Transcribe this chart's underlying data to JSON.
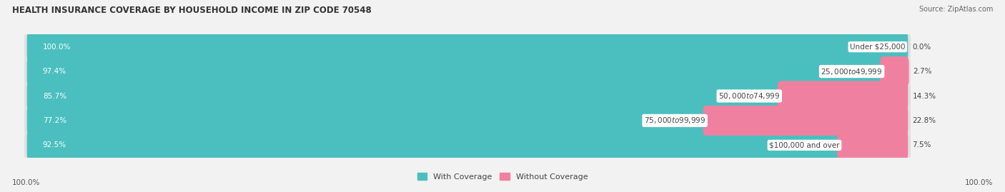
{
  "title": "HEALTH INSURANCE COVERAGE BY HOUSEHOLD INCOME IN ZIP CODE 70548",
  "source": "Source: ZipAtlas.com",
  "categories": [
    "Under $25,000",
    "$25,000 to $49,999",
    "$50,000 to $74,999",
    "$75,000 to $99,999",
    "$100,000 and over"
  ],
  "with_coverage": [
    100.0,
    97.4,
    85.7,
    77.2,
    92.5
  ],
  "without_coverage": [
    0.0,
    2.7,
    14.3,
    22.8,
    7.5
  ],
  "color_with": "#4BBFBF",
  "color_without": "#F080A0",
  "bg_color": "#F2F2F2",
  "bar_bg_color": "#E0E0E0",
  "title_fontsize": 8.5,
  "label_fontsize": 7.5,
  "legend_fontsize": 8,
  "source_fontsize": 7,
  "axis_label": "100.0%",
  "total_width": 100.0,
  "bar_height": 0.62
}
